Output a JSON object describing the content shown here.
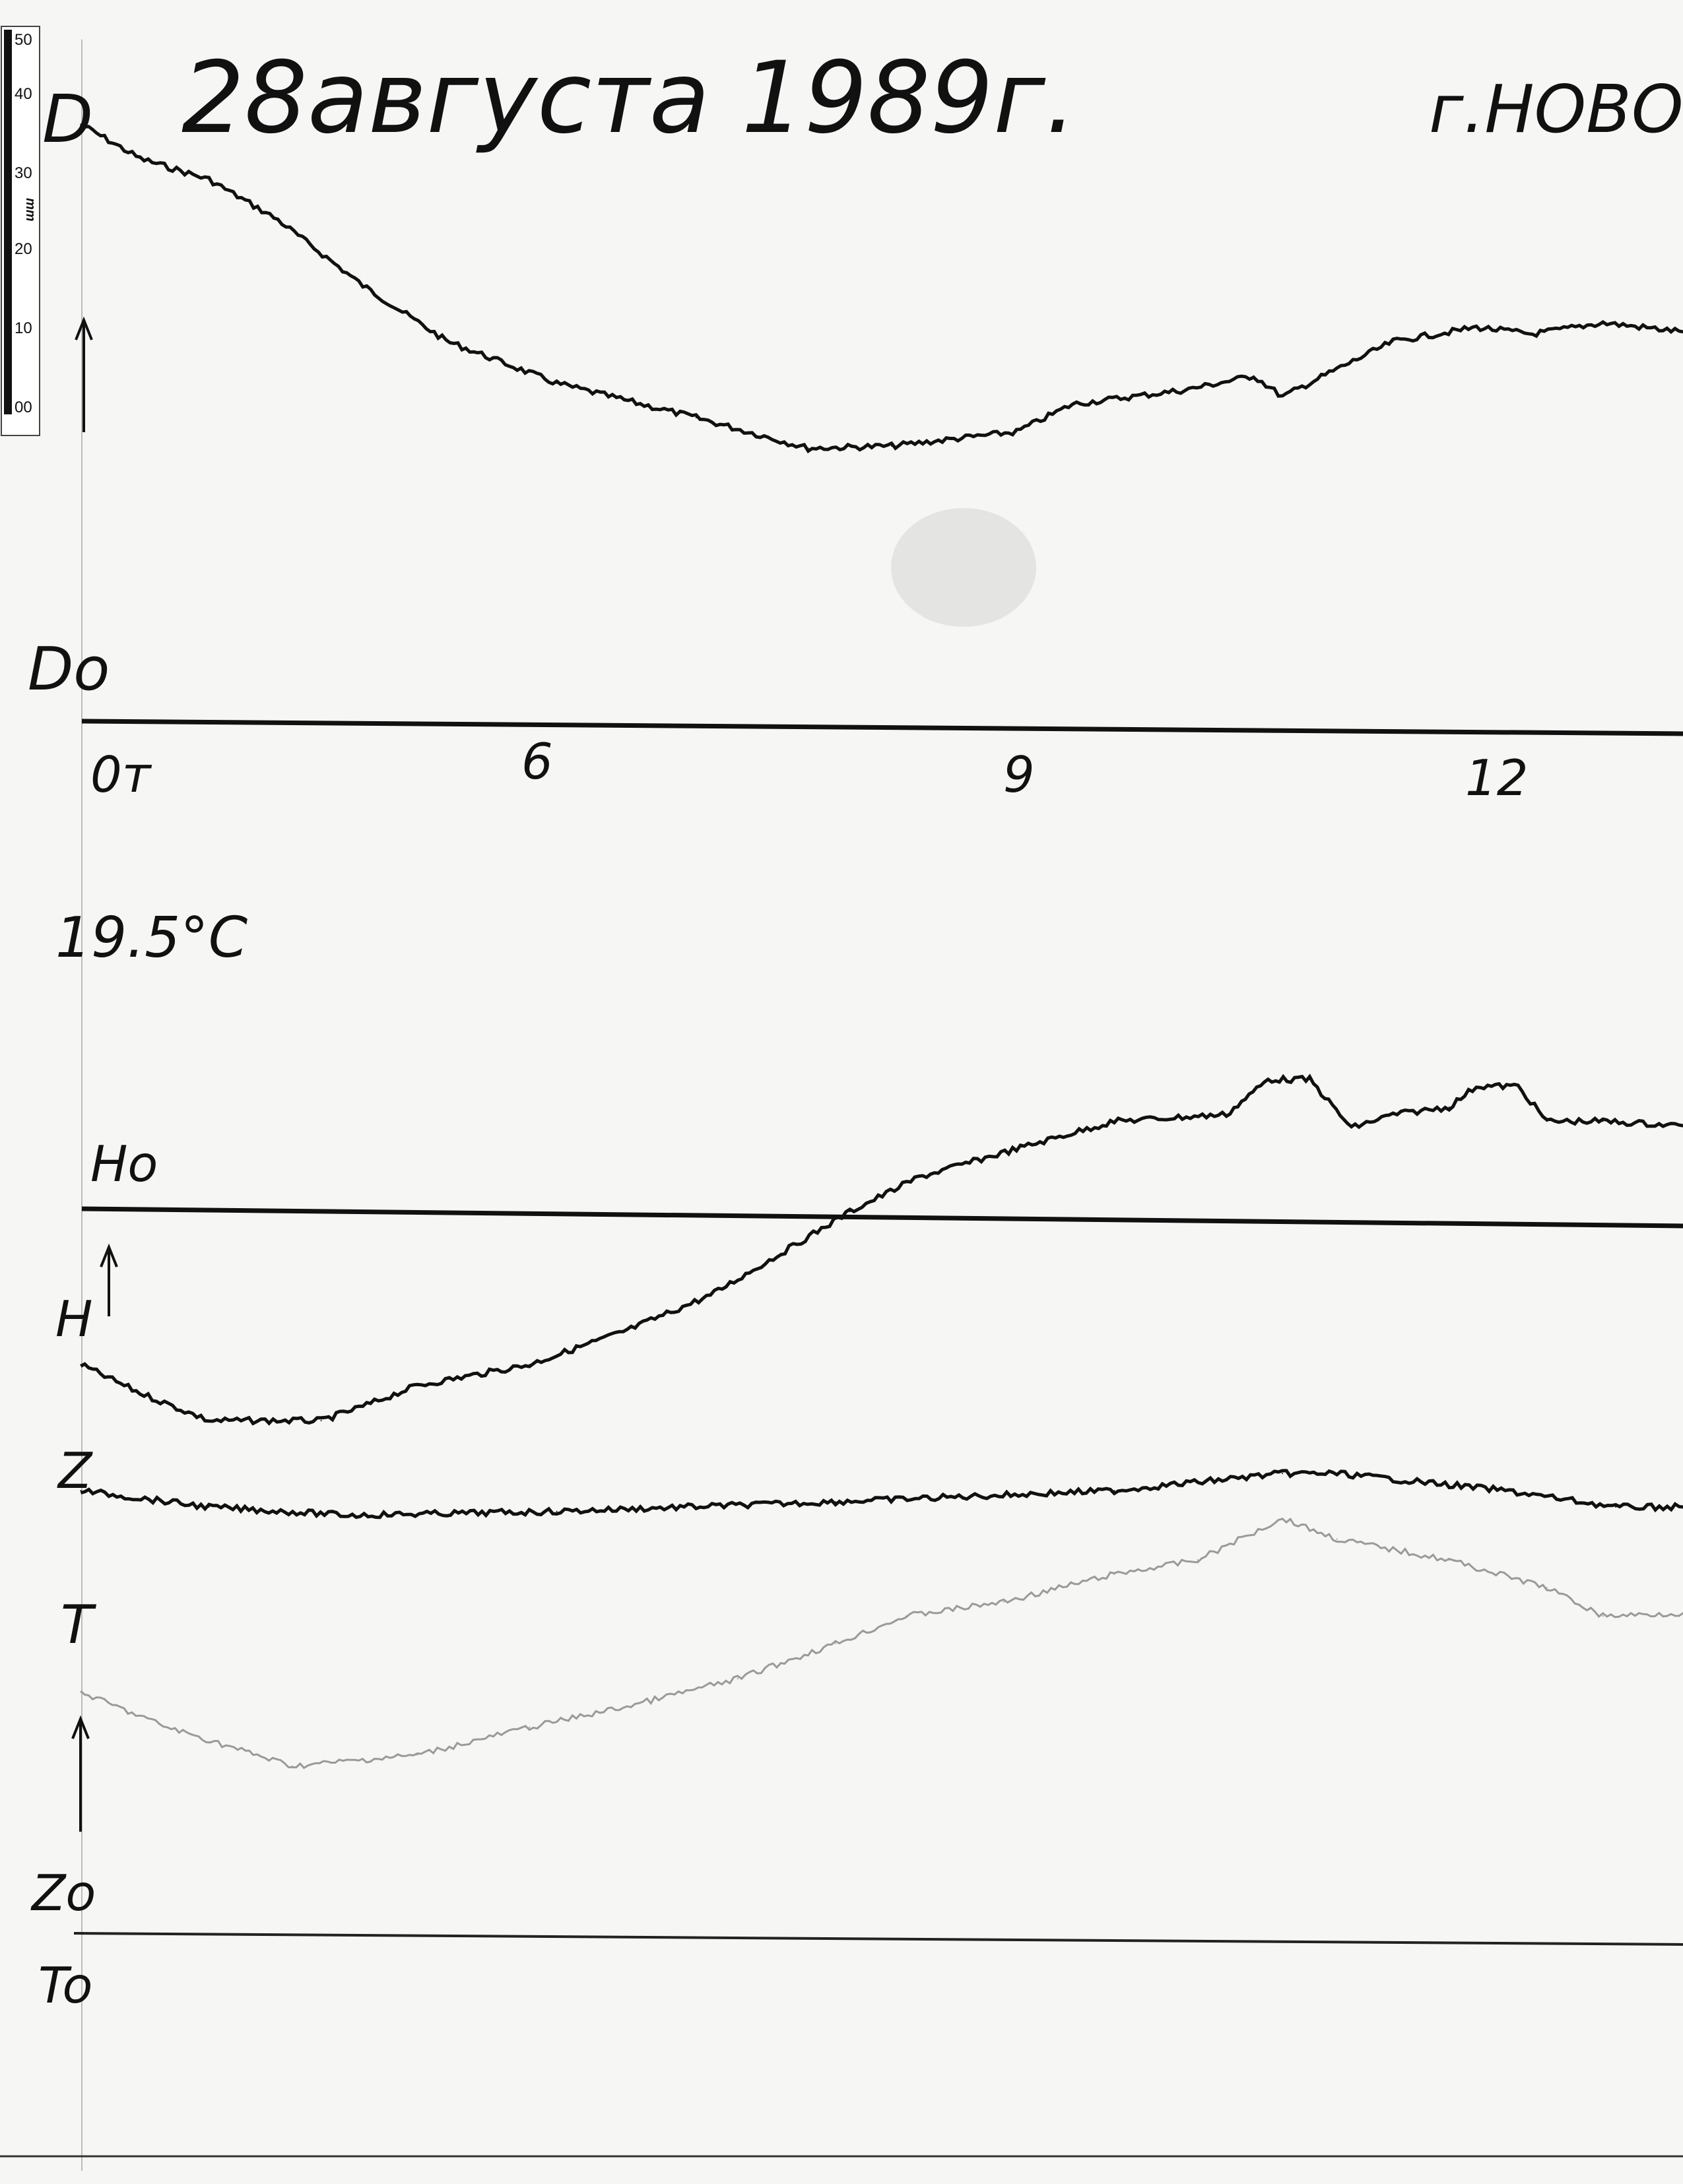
{
  "header": {
    "date": "28августа 1989г.",
    "place": "г.НОВОС"
  },
  "ruler": {
    "ticks": [
      "50",
      "40",
      "30",
      "20",
      "10",
      "00"
    ],
    "unit": "mm"
  },
  "labels": {
    "d": "D",
    "d0": "Do",
    "temperature": "19.5°C",
    "h0": "Ho",
    "h": "H",
    "z": "Z",
    "t": "T",
    "z0": "Zo",
    "t0": "To"
  },
  "chart_data": {
    "type": "line",
    "title": "28августа 1989г.",
    "x_unit": "hours",
    "x_ticks": [
      {
        "label": "0т",
        "value": 3.2
      },
      {
        "label": "6",
        "value": 6
      },
      {
        "label": "9",
        "value": 9
      },
      {
        "label": "12",
        "value": 12
      }
    ],
    "y_unit": "mm",
    "grid": false,
    "series": [
      {
        "name": "D",
        "baseline": "Do",
        "color": "#111111",
        "x": [
          3.2,
          3.57,
          4.0,
          4.43,
          4.96,
          5.48,
          6.17,
          7.04,
          7.74,
          8.26,
          9.04,
          9.39,
          10.09,
          10.52,
          10.7,
          11.04,
          11.39,
          11.91,
          12.26,
          12.7,
          13.2
        ],
        "y": [
          80,
          75.4,
          72.6,
          67.2,
          58.4,
          51.0,
          45.3,
          40.7,
          36.6,
          36.9,
          38.8,
          42.5,
          44.4,
          46.3,
          43.5,
          47.2,
          50.9,
          52.8,
          51.9,
          53.4,
          52.2
        ]
      },
      {
        "name": "H",
        "baseline": "Ho",
        "color": "#111111",
        "x": [
          3.2,
          3.57,
          4.0,
          4.7,
          4.96,
          5.3,
          6.0,
          6.61,
          7.13,
          7.57,
          8.0,
          8.43,
          9.04,
          9.65,
          10.35,
          10.61,
          10.87,
          11.13,
          11.39,
          11.74,
          11.91,
          12.17,
          12.35,
          12.7,
          13.2
        ],
        "y": [
          -20.1,
          -23.9,
          -27.6,
          -27.6,
          -25.7,
          -22.9,
          -20.1,
          -15.5,
          -10.8,
          -5.2,
          0.4,
          5.0,
          8.8,
          12.5,
          13.4,
          18.1,
          18.1,
          11.6,
          13.4,
          14.4,
          17.2,
          17.2,
          12.5,
          12.5,
          11.9
        ]
      },
      {
        "name": "Z",
        "baseline": "Zo",
        "color": "#111111",
        "x": [
          3.2,
          4.0,
          4.87,
          6.17,
          7.91,
          9.65,
          10.7,
          11.04,
          12.09,
          12.78,
          13.2
        ],
        "y": [
          59.3,
          57.1,
          56.0,
          56.5,
          57.8,
          59.3,
          61.6,
          61.6,
          59.3,
          57.1,
          57.1
        ]
      },
      {
        "name": "T",
        "baseline": "To",
        "color": "#9a9a9a",
        "x": [
          3.2,
          3.74,
          4.52,
          5.3,
          6.0,
          6.61,
          7.3,
          7.91,
          8.35,
          8.96,
          9.65,
          10.17,
          10.7,
          11.04,
          11.74,
          12.35,
          12.7,
          13.2
        ],
        "y": [
          32.3,
          27.6,
          22.4,
          23.9,
          27.6,
          30.4,
          34.1,
          38.8,
          42.5,
          44.4,
          48.1,
          50.0,
          55.6,
          52.8,
          50.0,
          46.3,
          42.5,
          42.9
        ]
      }
    ]
  }
}
